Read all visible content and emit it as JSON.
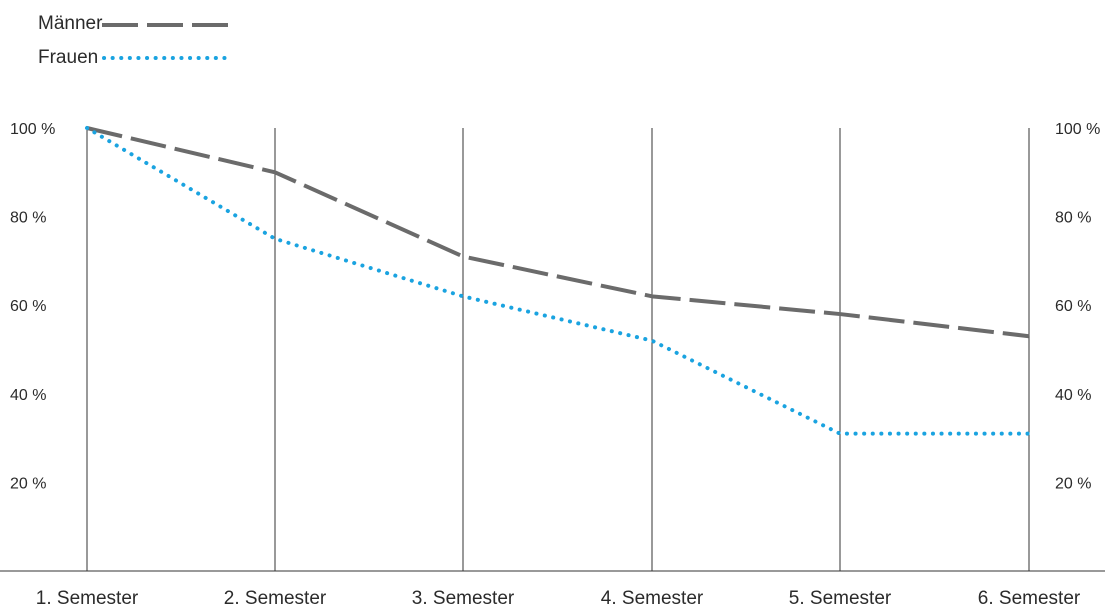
{
  "chart_data": {
    "type": "line",
    "title": "",
    "xlabel": "",
    "ylabel": "",
    "categories": [
      "1. Semester",
      "2. Semester",
      "3. Semester",
      "4. Semester",
      "5. Semester",
      "6. Semester"
    ],
    "series": [
      {
        "name": "Männer",
        "values": [
          100,
          90,
          71,
          62,
          58,
          53
        ],
        "color": "#6b6b6b",
        "line_style": "dashed"
      },
      {
        "name": "Frauen",
        "values": [
          100,
          75,
          62,
          52,
          31,
          31
        ],
        "color": "#1aa3e0",
        "line_style": "dotted"
      }
    ],
    "y_ticks": [
      100,
      80,
      60,
      40,
      20
    ],
    "y_tick_labels_left": [
      "100 %",
      "80 %",
      "60 %",
      "40 %",
      "20 %"
    ],
    "y_tick_labels_right": [
      "100 %",
      "80 %",
      "60 %",
      "40 %",
      "20 %"
    ],
    "ylim": [
      0,
      100
    ],
    "grid": "vertical lines at each category",
    "legend_position": "top-left"
  }
}
